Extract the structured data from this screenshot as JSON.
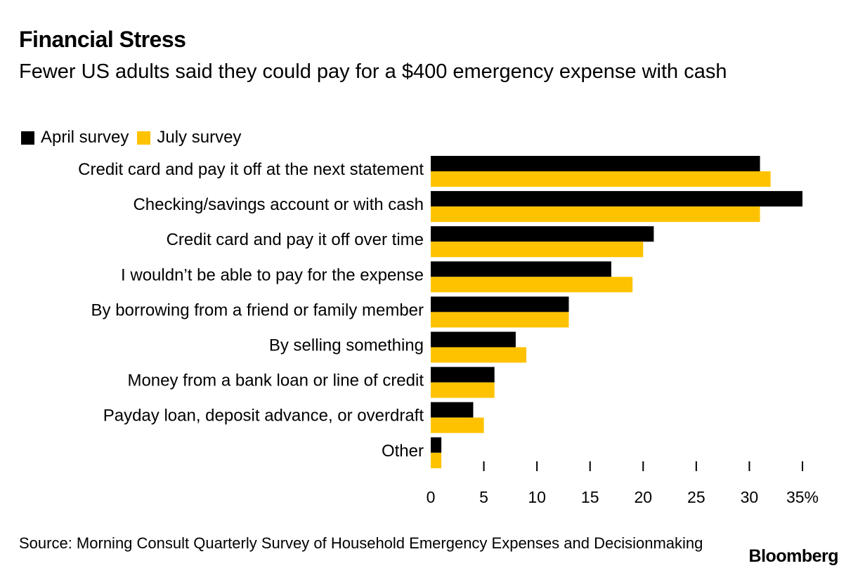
{
  "header": {
    "title": "Financial Stress",
    "subtitle": "Fewer US adults said they could pay for a $400 emergency expense with cash"
  },
  "legend": {
    "april": "April survey",
    "july": "July survey"
  },
  "footer": {
    "source": "Source: Morning Consult Quarterly Survey of Household Emergency Expenses and Decisionmaking",
    "logo": "Bloomberg"
  },
  "colors": {
    "april": "#000000",
    "july": "#FFC200",
    "axis": "#000000"
  },
  "chart_data": {
    "type": "bar",
    "orientation": "horizontal",
    "title": "Financial Stress",
    "subtitle": "Fewer US adults said they could pay for a $400 emergency expense with cash",
    "categories": [
      "Credit card and pay it off at the next statement",
      "Checking/savings account or with cash",
      "Credit card and pay it off over time",
      "I wouldn’t be able to pay for the expense",
      "By borrowing from a friend or family member",
      "By selling something",
      "Money from a bank loan or line of credit",
      "Payday loan, deposit advance, or overdraft",
      "Other"
    ],
    "series": [
      {
        "name": "April survey",
        "values": [
          31,
          35,
          21,
          17,
          13,
          8,
          6,
          4,
          1
        ]
      },
      {
        "name": "July survey",
        "values": [
          32,
          31,
          20,
          19,
          13,
          9,
          6,
          5,
          1
        ]
      }
    ],
    "xlim": [
      0,
      35
    ],
    "xticks": [
      0,
      5,
      10,
      15,
      20,
      25,
      30,
      35
    ],
    "xtick_labels": [
      "0",
      "5",
      "10",
      "15",
      "20",
      "25",
      "30",
      "35%"
    ],
    "xlabel": "",
    "ylabel": "",
    "grid": false,
    "legend_position": "top-left"
  }
}
